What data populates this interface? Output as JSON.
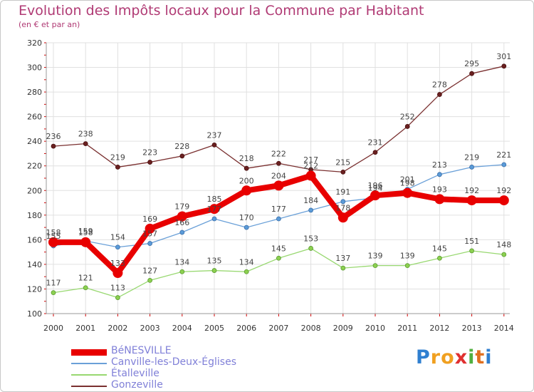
{
  "title": "Evolution des Impôts locaux pour la Commune par Habitant",
  "subtitle": "(en € et par an)",
  "logo": {
    "letters": [
      "P",
      "r",
      "o",
      "x",
      "i",
      "t",
      "i"
    ],
    "colors": [
      "#2f7fd0",
      "#f0a020",
      "#f0a020",
      "#e03030",
      "#50b040",
      "#e07020",
      "#2f7fd0"
    ]
  },
  "chart_data": {
    "type": "line",
    "x": [
      "2000",
      "2001",
      "2002",
      "2003",
      "2004",
      "2005",
      "2006",
      "2007",
      "2008",
      "2009",
      "2010",
      "2011",
      "2012",
      "2013",
      "2014"
    ],
    "ylim": [
      100,
      320
    ],
    "yticks": [
      100,
      120,
      140,
      160,
      180,
      200,
      220,
      240,
      260,
      280,
      300,
      320
    ],
    "grid": true,
    "legend_position": "bottom-left",
    "series": [
      {
        "name": "BéNESVILLE",
        "color": "#e80000",
        "values": [
          158,
          158,
          133,
          169,
          179,
          185,
          200,
          204,
          212,
          178,
          196,
          198,
          193,
          192,
          192
        ]
      },
      {
        "name": "Canville-les-Deux-Églises",
        "color": "#6aa0d8",
        "values": [
          155,
          159,
          154,
          157,
          166,
          177,
          170,
          177,
          184,
          191,
          194,
          201,
          213,
          219,
          221
        ]
      },
      {
        "name": "Étalleville",
        "color": "#98d870",
        "values": [
          117,
          121,
          113,
          127,
          134,
          135,
          134,
          145,
          153,
          137,
          139,
          139,
          145,
          151,
          148
        ]
      },
      {
        "name": "Gonzeville",
        "color": "#7a3030",
        "values": [
          236,
          238,
          219,
          223,
          228,
          237,
          218,
          222,
          217,
          215,
          231,
          252,
          278,
          295,
          301
        ]
      }
    ]
  }
}
